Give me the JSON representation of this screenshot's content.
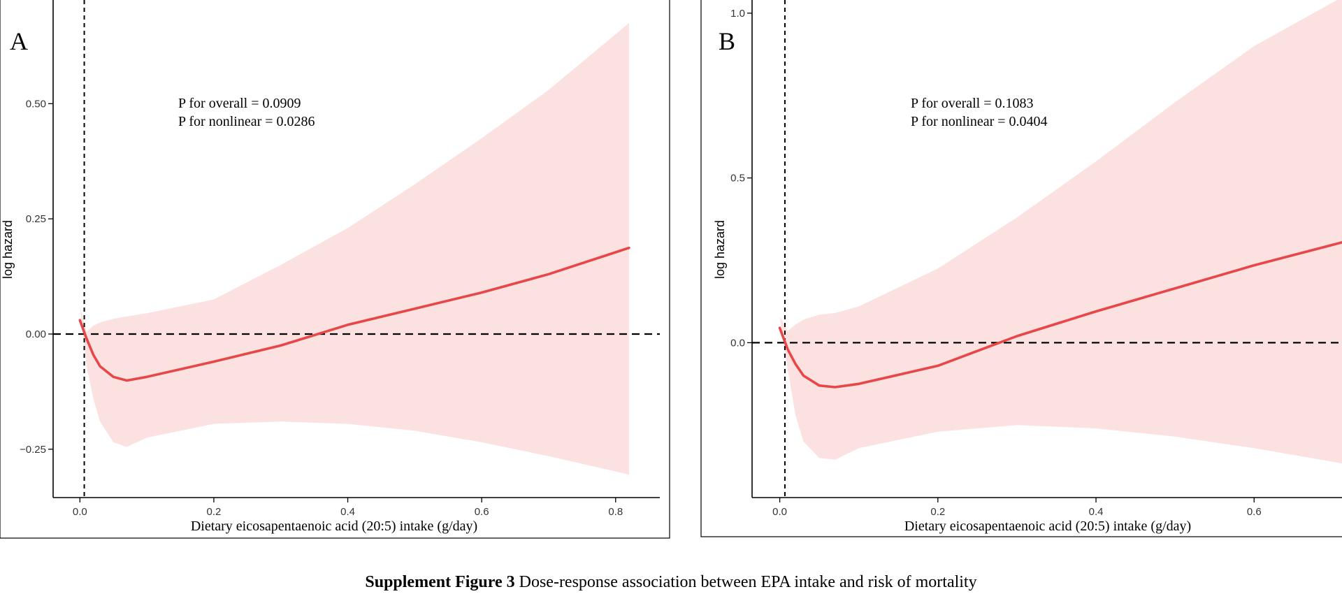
{
  "caption": {
    "label": "Supplement Figure 3",
    "text": "Dose-response association between EPA intake and risk of mortality"
  },
  "colors": {
    "line": "#e8474a",
    "band": "#fbe1df",
    "axis": "#000000",
    "reference": "#000000"
  },
  "chart_data": [
    {
      "type": "line",
      "panel_label": "A",
      "xlabel": "Dietary eicosapentaenoic acid (20:5) intake (g/day)",
      "ylabel": "log hazard",
      "xlim": [
        -0.04,
        0.866
      ],
      "ylim": [
        -0.355,
        0.725
      ],
      "xticks": [
        0.0,
        0.2,
        0.4,
        0.6,
        0.8
      ],
      "xtick_labels": [
        "0.0",
        "0.2",
        "0.4",
        "0.6",
        "0.8"
      ],
      "yticks": [
        -0.25,
        0.0,
        0.25,
        0.5
      ],
      "ytick_labels": [
        "−0.25",
        "0.00",
        "0.25",
        "0.50"
      ],
      "reference_x": 0.0065,
      "reference_y": 0.0,
      "annotations": [
        "P for overall = 0.0909",
        "P for nonlinear = 0.0286"
      ],
      "series": [
        {
          "name": "log hazard",
          "x": [
            0.0,
            0.01,
            0.02,
            0.03,
            0.05,
            0.07,
            0.1,
            0.2,
            0.3,
            0.4,
            0.5,
            0.6,
            0.7,
            0.82
          ],
          "y": [
            0.03,
            -0.01,
            -0.045,
            -0.07,
            -0.093,
            -0.101,
            -0.093,
            -0.06,
            -0.025,
            0.02,
            0.055,
            0.09,
            0.13,
            0.187
          ],
          "lower": [
            0.06,
            -0.07,
            -0.14,
            -0.19,
            -0.235,
            -0.245,
            -0.225,
            -0.195,
            -0.19,
            -0.195,
            -0.21,
            -0.235,
            -0.265,
            -0.305
          ],
          "upper": [
            0.06,
            0.005,
            0.018,
            0.025,
            0.033,
            0.038,
            0.045,
            0.075,
            0.15,
            0.23,
            0.325,
            0.425,
            0.53,
            0.675
          ]
        }
      ]
    },
    {
      "type": "line",
      "panel_label": "B",
      "xlabel": "Dietary eicosapentaenoic acid (20:5) intake (g/day)",
      "ylabel": "log hazard",
      "xlim": [
        -0.035,
        0.72
      ],
      "ylim": [
        -0.47,
        1.04
      ],
      "xticks": [
        0.0,
        0.2,
        0.4,
        0.6
      ],
      "xtick_labels": [
        "0.0",
        "0.2",
        "0.4",
        "0.6"
      ],
      "yticks": [
        0.0,
        0.5,
        1.0
      ],
      "ytick_labels": [
        "0.0",
        "0.5",
        "1.0"
      ],
      "reference_x": 0.0065,
      "reference_y": 0.0,
      "annotations": [
        "P for overall = 0.1083",
        "P for nonlinear = 0.0404"
      ],
      "series": [
        {
          "name": "log hazard",
          "x": [
            0.0,
            0.01,
            0.02,
            0.03,
            0.05,
            0.07,
            0.1,
            0.2,
            0.3,
            0.4,
            0.5,
            0.6,
            0.72
          ],
          "y": [
            0.045,
            -0.02,
            -0.065,
            -0.1,
            -0.13,
            -0.135,
            -0.125,
            -0.07,
            0.02,
            0.095,
            0.165,
            0.235,
            0.31
          ],
          "lower": [
            0.08,
            -0.08,
            -0.22,
            -0.3,
            -0.35,
            -0.355,
            -0.32,
            -0.27,
            -0.25,
            -0.26,
            -0.285,
            -0.32,
            -0.37
          ],
          "upper": [
            0.08,
            0.035,
            0.055,
            0.07,
            0.085,
            0.09,
            0.11,
            0.225,
            0.38,
            0.55,
            0.73,
            0.9,
            1.06
          ]
        }
      ]
    }
  ]
}
